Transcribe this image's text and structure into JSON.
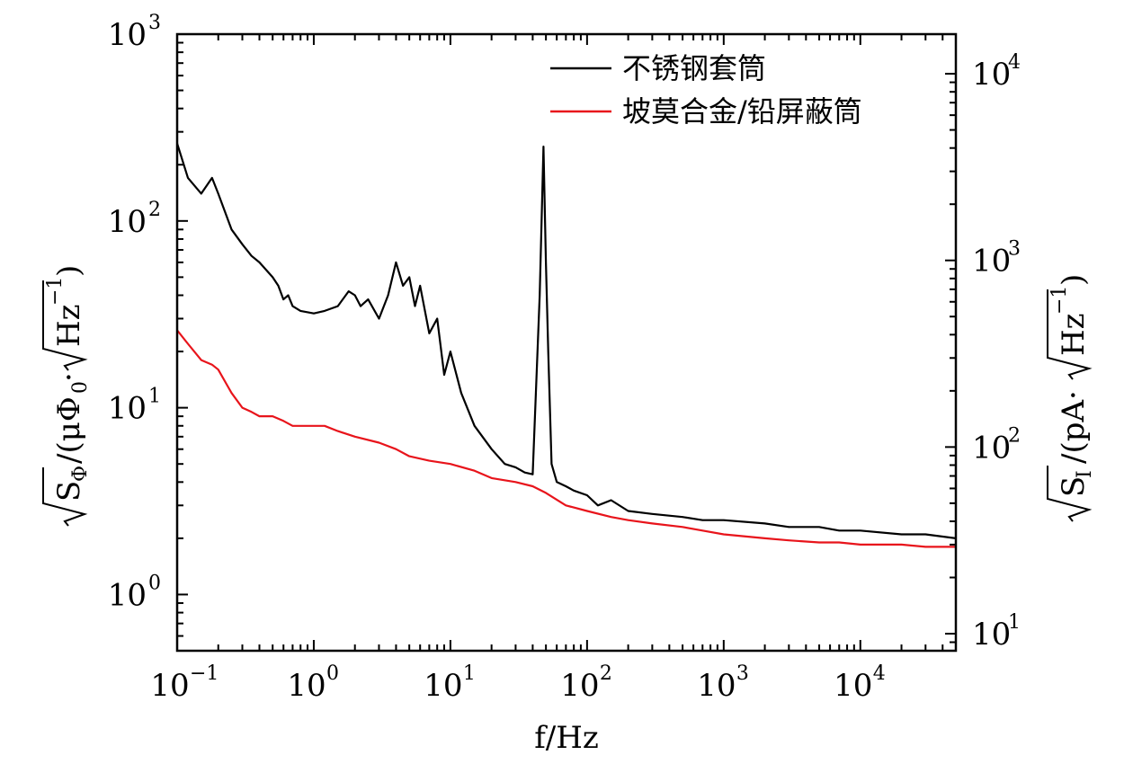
{
  "chart_data": {
    "type": "line",
    "title": "",
    "xlabel": "f/Hz",
    "ylabel_left": "√S_Φ/(μΦ0·√Hz^-1)",
    "ylabel_right": "√S_I/(pA·√Hz^-1)",
    "x_scale": "log",
    "y_scale": "log",
    "xlim": [
      0.1,
      50000
    ],
    "ylim_left": [
      0.5,
      1000
    ],
    "ylim_right": [
      8.1,
      16300
    ],
    "x_ticks": [
      {
        "base": "10",
        "exp": "−1",
        "value": 0.1
      },
      {
        "base": "10",
        "exp": "0",
        "value": 1
      },
      {
        "base": "10",
        "exp": "1",
        "value": 10
      },
      {
        "base": "10",
        "exp": "2",
        "value": 100
      },
      {
        "base": "10",
        "exp": "3",
        "value": 1000
      },
      {
        "base": "10",
        "exp": "4",
        "value": 10000
      }
    ],
    "y_ticks_left": [
      {
        "base": "10",
        "exp": "0",
        "value": 1
      },
      {
        "base": "10",
        "exp": "1",
        "value": 10
      },
      {
        "base": "10",
        "exp": "2",
        "value": 100
      },
      {
        "base": "10",
        "exp": "3",
        "value": 1000
      }
    ],
    "y_ticks_right": [
      {
        "base": "10",
        "exp": "1",
        "value": 10
      },
      {
        "base": "10",
        "exp": "2",
        "value": 100
      },
      {
        "base": "10",
        "exp": "3",
        "value": 1000
      },
      {
        "base": "10",
        "exp": "4",
        "value": 10000
      }
    ],
    "grid": false,
    "legend_position": "top-right",
    "series": [
      {
        "name": "不锈钢套筒",
        "color": "#000000",
        "x": [
          0.1,
          0.12,
          0.15,
          0.18,
          0.2,
          0.25,
          0.3,
          0.35,
          0.4,
          0.5,
          0.55,
          0.6,
          0.65,
          0.7,
          0.8,
          1.0,
          1.2,
          1.5,
          1.8,
          2.0,
          2.2,
          2.5,
          3.0,
          3.5,
          4.0,
          4.5,
          5.0,
          5.5,
          6.0,
          7.0,
          8.0,
          9.0,
          10,
          12,
          15,
          20,
          25,
          30,
          35,
          40,
          45,
          48,
          50,
          52,
          55,
          60,
          70,
          80,
          100,
          120,
          150,
          200,
          300,
          500,
          700,
          1000,
          2000,
          3000,
          5000,
          7000,
          10000,
          20000,
          30000,
          50000
        ],
        "y": [
          260,
          170,
          140,
          170,
          140,
          90,
          75,
          65,
          60,
          50,
          45,
          38,
          40,
          35,
          33,
          32,
          33,
          35,
          42,
          40,
          35,
          38,
          30,
          40,
          60,
          45,
          50,
          35,
          45,
          25,
          30,
          15,
          20,
          12,
          8,
          6,
          5,
          4.8,
          4.5,
          4.4,
          40,
          250,
          60,
          20,
          5,
          4,
          3.8,
          3.6,
          3.4,
          3.0,
          3.2,
          2.8,
          2.7,
          2.6,
          2.5,
          2.5,
          2.4,
          2.3,
          2.3,
          2.2,
          2.2,
          2.1,
          2.1,
          2.0
        ]
      },
      {
        "name": "坡莫合金/铅屏蔽筒",
        "color": "#e8141b",
        "x": [
          0.1,
          0.12,
          0.15,
          0.18,
          0.2,
          0.25,
          0.3,
          0.35,
          0.4,
          0.5,
          0.6,
          0.7,
          0.8,
          1.0,
          1.2,
          1.5,
          2.0,
          3.0,
          4.0,
          5.0,
          7.0,
          10,
          15,
          20,
          30,
          40,
          50,
          70,
          100,
          150,
          200,
          300,
          500,
          700,
          1000,
          2000,
          3000,
          5000,
          7000,
          10000,
          20000,
          30000,
          50000
        ],
        "y": [
          26,
          22,
          18,
          17,
          16,
          12,
          10,
          9.5,
          9.0,
          9.0,
          8.5,
          8.0,
          8.0,
          8.0,
          8.0,
          7.5,
          7.0,
          6.5,
          6.0,
          5.5,
          5.2,
          5.0,
          4.6,
          4.2,
          4.0,
          3.8,
          3.5,
          3.0,
          2.8,
          2.6,
          2.5,
          2.4,
          2.3,
          2.2,
          2.1,
          2.0,
          1.95,
          1.9,
          1.9,
          1.85,
          1.85,
          1.8,
          1.8
        ]
      }
    ]
  }
}
